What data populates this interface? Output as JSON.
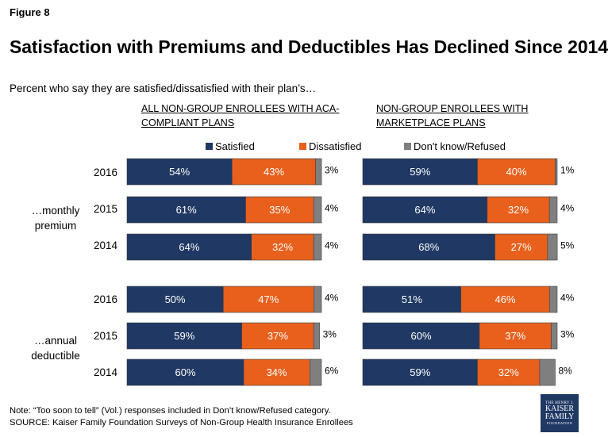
{
  "figure_label": "Figure 8",
  "title": "Satisfaction with Premiums and Deductibles Has Declined Since 2014",
  "subtitle": "Percent who say they are satisfied/dissatisfied with their plan’s…",
  "panels": {
    "left_title": "ALL NON-GROUP ENROLLEES WITH ACA-COMPLIANT PLANS",
    "right_title": "NON-GROUP ENROLLEES WITH MARKETPLACE PLANS"
  },
  "legend": [
    {
      "label": "Satisfied",
      "color": "#1f3864"
    },
    {
      "label": "Dissatisfied",
      "color": "#e8601c"
    },
    {
      "label": "Don't know/Refused",
      "color": "#7f7f7f"
    }
  ],
  "groups": {
    "premium_label": "…monthly premium",
    "deductible_label": "…annual deductible"
  },
  "years": [
    "2016",
    "2015",
    "2014"
  ],
  "footer": {
    "note": "Note: “Too soon to tell” (Vol.) responses included in Don’t know/Refused category.",
    "source": "SOURCE: Kaiser Family Foundation Surveys of Non-Group Health Insurance Enrollees"
  },
  "logo": {
    "line1": "THE HENRY J.",
    "line2": "KAISER",
    "line3": "FAMILY",
    "line4": "FOUNDATION"
  },
  "chart_data": {
    "type": "bar",
    "orientation": "horizontal",
    "stacked": true,
    "series_names": [
      "Satisfied",
      "Dissatisfied",
      "Don't know/Refused"
    ],
    "colors": [
      "#1f3864",
      "#e8601c",
      "#7f7f7f"
    ],
    "xlim": [
      0,
      100
    ],
    "panels": [
      {
        "name": "ALL NON-GROUP ENROLLEES WITH ACA-COMPLIANT PLANS",
        "rows": [
          {
            "group": "…monthly premium",
            "year": "2016",
            "values": [
              54,
              43,
              3
            ]
          },
          {
            "group": "…monthly premium",
            "year": "2015",
            "values": [
              61,
              35,
              4
            ]
          },
          {
            "group": "…monthly premium",
            "year": "2014",
            "values": [
              64,
              32,
              4
            ]
          },
          {
            "group": "…annual deductible",
            "year": "2016",
            "values": [
              50,
              47,
              4
            ]
          },
          {
            "group": "…annual deductible",
            "year": "2015",
            "values": [
              59,
              37,
              3
            ]
          },
          {
            "group": "…annual deductible",
            "year": "2014",
            "values": [
              60,
              34,
              6
            ]
          }
        ]
      },
      {
        "name": "NON-GROUP ENROLLEES WITH MARKETPLACE PLANS",
        "rows": [
          {
            "group": "…monthly premium",
            "year": "2016",
            "values": [
              59,
              40,
              1
            ]
          },
          {
            "group": "…monthly premium",
            "year": "2015",
            "values": [
              64,
              32,
              4
            ]
          },
          {
            "group": "…monthly premium",
            "year": "2014",
            "values": [
              68,
              27,
              5
            ]
          },
          {
            "group": "…annual deductible",
            "year": "2016",
            "values": [
              51,
              46,
              4
            ]
          },
          {
            "group": "…annual deductible",
            "year": "2015",
            "values": [
              60,
              37,
              3
            ]
          },
          {
            "group": "…annual deductible",
            "year": "2014",
            "values": [
              59,
              32,
              8
            ]
          }
        ]
      }
    ]
  }
}
